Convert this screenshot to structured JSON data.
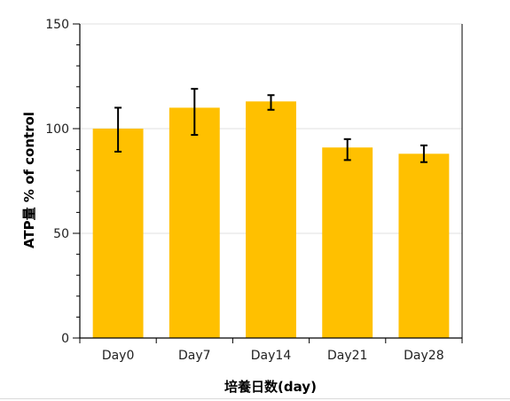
{
  "chart_data": {
    "type": "bar",
    "categories": [
      "Day0",
      "Day7",
      "Day14",
      "Day21",
      "Day28"
    ],
    "values": [
      100,
      110,
      113,
      91,
      88
    ],
    "error_lower": [
      89,
      97,
      109,
      85,
      84
    ],
    "error_upper": [
      110,
      119,
      116,
      95,
      92
    ],
    "title": "",
    "xlabel": "培養日数(day)",
    "ylabel": "ATP量 % of control",
    "ylim": [
      0,
      150
    ],
    "yticks": [
      "0",
      "50",
      "100",
      "150"
    ],
    "grid": true,
    "legend": "none",
    "colors": {
      "bar": "#FFC000",
      "error_bar": "#000000",
      "grid": "#e0e0e0",
      "axis": "#000000"
    }
  }
}
